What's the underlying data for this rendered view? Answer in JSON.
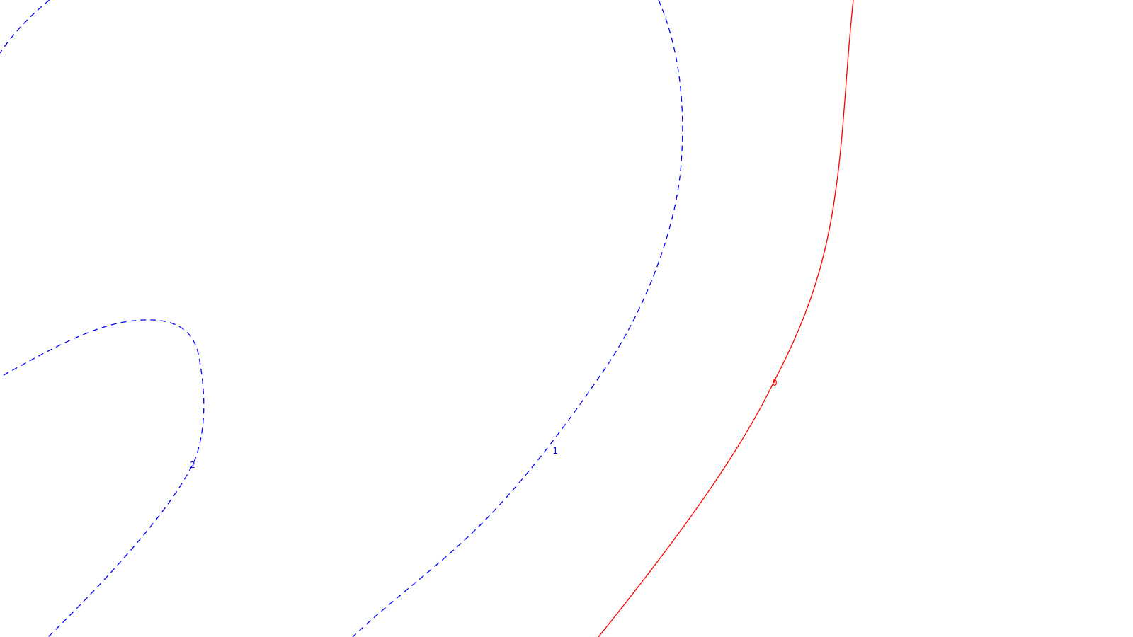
{
  "map": {
    "background_color": "#ffffff",
    "contours": [
      {
        "id": "contour-level-2",
        "level_label": "2",
        "color": "#0000ff",
        "style": "dashed"
      },
      {
        "id": "contour-level-1",
        "level_label": "1",
        "color": "#0000ff",
        "style": "dashed"
      },
      {
        "id": "contour-level-0",
        "level_label": "0",
        "color": "#ff0000",
        "style": "solid"
      }
    ]
  }
}
